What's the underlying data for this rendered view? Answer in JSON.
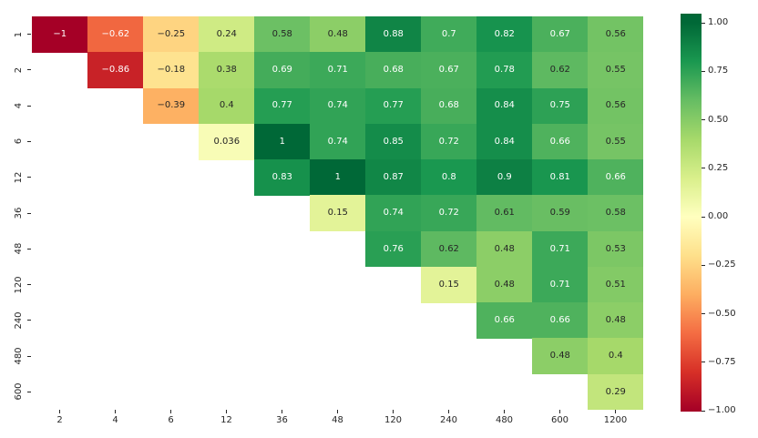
{
  "figure": {
    "background": "#ffffff",
    "tick_color": "#262626"
  },
  "chart_data": {
    "type": "heatmap",
    "title": "",
    "xlabel": "",
    "ylabel": "",
    "colormap": "RdYlGn",
    "vmin": -1,
    "vmax": 1,
    "grid": false,
    "mask": "lower-triangle-blank",
    "x_tick_labels": [
      "2",
      "4",
      "6",
      "12",
      "36",
      "48",
      "120",
      "240",
      "480",
      "600",
      "1200"
    ],
    "y_tick_labels": [
      "1",
      "2",
      "4",
      "6",
      "12",
      "36",
      "48",
      "120",
      "240",
      "480",
      "600"
    ],
    "values": [
      [
        -1,
        -0.62,
        -0.25,
        0.24,
        0.58,
        0.48,
        0.88,
        0.7,
        0.82,
        0.67,
        0.56
      ],
      [
        null,
        -0.86,
        -0.18,
        0.38,
        0.69,
        0.71,
        0.68,
        0.67,
        0.78,
        0.62,
        0.55
      ],
      [
        null,
        null,
        -0.39,
        0.4,
        0.77,
        0.74,
        0.77,
        0.68,
        0.84,
        0.75,
        0.56
      ],
      [
        null,
        null,
        null,
        0.036,
        1,
        0.74,
        0.85,
        0.72,
        0.84,
        0.66,
        0.55
      ],
      [
        null,
        null,
        null,
        null,
        0.83,
        1,
        0.87,
        0.8,
        0.9,
        0.81,
        0.66
      ],
      [
        null,
        null,
        null,
        null,
        null,
        0.15,
        0.74,
        0.72,
        0.61,
        0.59,
        0.58
      ],
      [
        null,
        null,
        null,
        null,
        null,
        null,
        0.76,
        0.62,
        0.48,
        0.71,
        0.53
      ],
      [
        null,
        null,
        null,
        null,
        null,
        null,
        null,
        0.15,
        0.48,
        0.71,
        0.51
      ],
      [
        null,
        null,
        null,
        null,
        null,
        null,
        null,
        null,
        0.66,
        0.66,
        0.48
      ],
      [
        null,
        null,
        null,
        null,
        null,
        null,
        null,
        null,
        null,
        0.48,
        0.4
      ],
      [
        null,
        null,
        null,
        null,
        null,
        null,
        null,
        null,
        null,
        null,
        0.29
      ]
    ],
    "annotations": [
      [
        "−1",
        "−0.62",
        "−0.25",
        "0.24",
        "0.58",
        "0.48",
        "0.88",
        "0.7",
        "0.82",
        "0.67",
        "0.56"
      ],
      [
        null,
        "−0.86",
        "−0.18",
        "0.38",
        "0.69",
        "0.71",
        "0.68",
        "0.67",
        "0.78",
        "0.62",
        "0.55"
      ],
      [
        null,
        null,
        "−0.39",
        "0.4",
        "0.77",
        "0.74",
        "0.77",
        "0.68",
        "0.84",
        "0.75",
        "0.56"
      ],
      [
        null,
        null,
        null,
        "0.036",
        "1",
        "0.74",
        "0.85",
        "0.72",
        "0.84",
        "0.66",
        "0.55"
      ],
      [
        null,
        null,
        null,
        null,
        "0.83",
        "1",
        "0.87",
        "0.8",
        "0.9",
        "0.81",
        "0.66"
      ],
      [
        null,
        null,
        null,
        null,
        null,
        "0.15",
        "0.74",
        "0.72",
        "0.61",
        "0.59",
        "0.58"
      ],
      [
        null,
        null,
        null,
        null,
        null,
        null,
        "0.76",
        "0.62",
        "0.48",
        "0.71",
        "0.53"
      ],
      [
        null,
        null,
        null,
        null,
        null,
        null,
        null,
        "0.15",
        "0.48",
        "0.71",
        "0.51"
      ],
      [
        null,
        null,
        null,
        null,
        null,
        null,
        null,
        null,
        "0.66",
        "0.66",
        "0.48"
      ],
      [
        null,
        null,
        null,
        null,
        null,
        null,
        null,
        null,
        null,
        "0.48",
        "0.4"
      ],
      [
        null,
        null,
        null,
        null,
        null,
        null,
        null,
        null,
        null,
        null,
        "0.29"
      ]
    ],
    "colormap_anchors": [
      "#a50026",
      "#d73027",
      "#f46d43",
      "#fdae61",
      "#fee08b",
      "#ffffbf",
      "#d9ef8b",
      "#a6d96a",
      "#66bd63",
      "#1a9850",
      "#006837"
    ],
    "annotation_text_colors": {
      "dark": "#262626",
      "light": "#ffffff"
    },
    "colorbar": {
      "position": "right",
      "tick_labels": [
        "1.00",
        "0.75",
        "0.50",
        "0.25",
        "0.00",
        "−0.25",
        "−0.50",
        "−0.75",
        "−1.00"
      ]
    }
  }
}
